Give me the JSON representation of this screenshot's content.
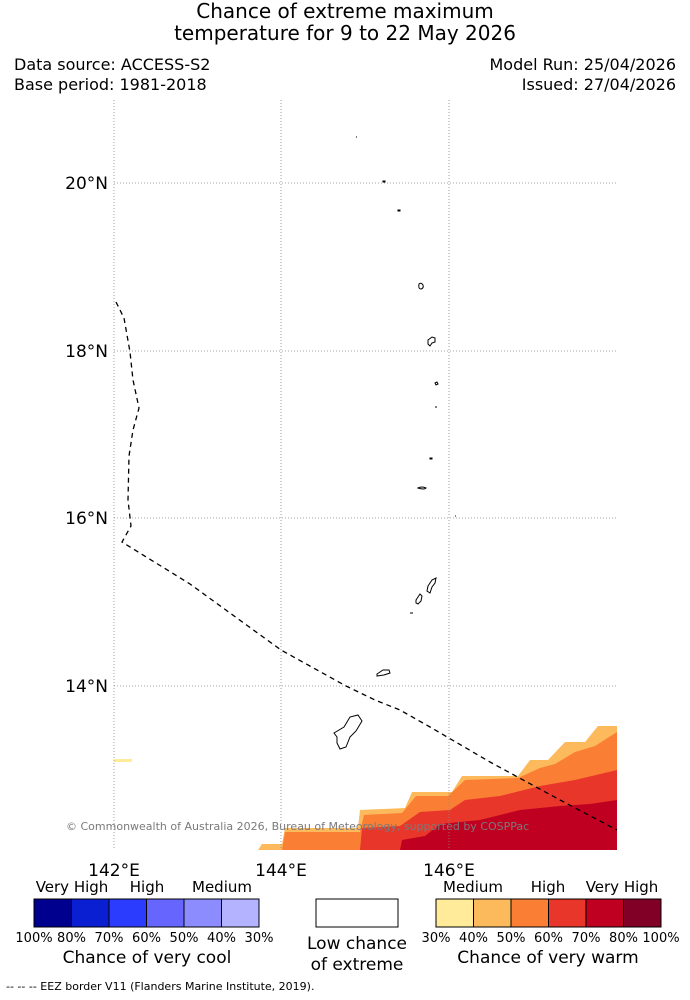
{
  "title": {
    "line1": "Chance of extreme maximum",
    "line2": "temperature for 9 to 22 May 2026"
  },
  "meta": {
    "data_source": "Data source: ACCESS-S2",
    "base_period": "Base period: 1981-2018",
    "model_run": "Model Run: 25/04/2026",
    "issued": "Issued: 27/04/2026"
  },
  "map": {
    "lat_labels": [
      "20°N",
      "18°N",
      "16°N",
      "14°N"
    ],
    "lon_labels": [
      "142°E",
      "144°E",
      "146°E"
    ],
    "copyright": "© Commonwealth of Australia 2026, Bureau of Meteorology, supported by COSPPac"
  },
  "legend": {
    "cool": {
      "category_labels": [
        "Very High",
        "High",
        "Medium"
      ],
      "colors": [
        "#00008f",
        "#0a1fd1",
        "#2b3cff",
        "#6666ff",
        "#8c8cff",
        "#b3b3ff"
      ],
      "percents": [
        "100%",
        "80%",
        "70%",
        "60%",
        "50%",
        "40%",
        "30%"
      ],
      "caption": "Chance of very cool"
    },
    "neutral": {
      "line1": "Low chance",
      "line2": "of extreme"
    },
    "warm": {
      "category_labels": [
        "Medium",
        "High",
        "Very High"
      ],
      "colors": [
        "#ffeb9a",
        "#fdba5c",
        "#fb7e35",
        "#e8362a",
        "#c00020",
        "#800026"
      ],
      "percents": [
        "30%",
        "40%",
        "50%",
        "60%",
        "70%",
        "80%",
        "100%"
      ],
      "caption": "Chance of very warm"
    }
  },
  "footer": {
    "eez_note": "--  --  -- EEZ border V11 (Flanders Marine Institute, 2019)."
  }
}
